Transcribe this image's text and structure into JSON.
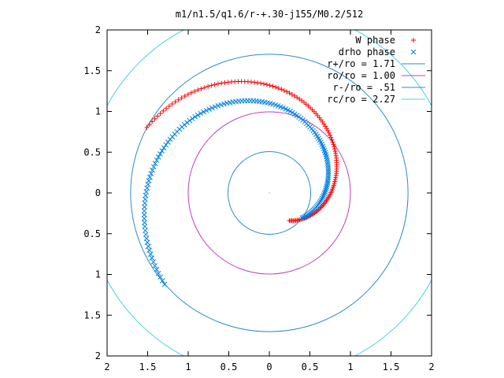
{
  "chart_data": {
    "type": "scatter",
    "title": "m1/n1.5/q1.6/r-+.30-j155/M0.2/512",
    "xlabel": "",
    "ylabel": "",
    "xlim": [
      -2,
      2
    ],
    "ylim": [
      -2,
      2
    ],
    "x_tick_values": [
      -2,
      -1.5,
      -1,
      -0.5,
      0,
      0.5,
      1,
      1.5,
      2
    ],
    "x_tick_labels": [
      "2",
      "1.5",
      "1",
      "0.5",
      "0",
      "0.5",
      "1",
      "1.5",
      "2"
    ],
    "y_tick_values": [
      2,
      1.5,
      1,
      0.5,
      0,
      -0.5,
      -1,
      -1.5,
      -2
    ],
    "y_tick_labels": [
      "2",
      "1.5",
      "1",
      "0.5",
      "0",
      "0.5",
      "1",
      "1.5",
      "2"
    ],
    "grid": false,
    "legend_position": "top-right",
    "series": [
      {
        "name": "W phase",
        "kind": "points",
        "marker": "plus",
        "color": "#ff0000",
        "radius_start": 0.42,
        "radius_end": 1.71,
        "angle_start_deg": -54,
        "angle_end_deg": 152,
        "count": 130
      },
      {
        "name": "drho phase",
        "kind": "points",
        "marker": "cross",
        "color": "#0080e0",
        "radius_start": 0.51,
        "radius_end": 1.71,
        "angle_start_deg": -37,
        "angle_end_deg": 221,
        "count": 150
      },
      {
        "name": "r+/ro = 1.71",
        "kind": "circle",
        "radius": 1.71,
        "color": "#2a8ccc"
      },
      {
        "name": "ro/ro = 1.00",
        "kind": "circle",
        "radius": 1.0,
        "color": "#c040c0"
      },
      {
        "name": "r-/ro = .51",
        "kind": "circle",
        "radius": 0.51,
        "color": "#2a8ccc"
      },
      {
        "name": "rc/ro = 2.27",
        "kind": "circle",
        "radius": 2.27,
        "color": "#40d0e8"
      }
    ]
  }
}
